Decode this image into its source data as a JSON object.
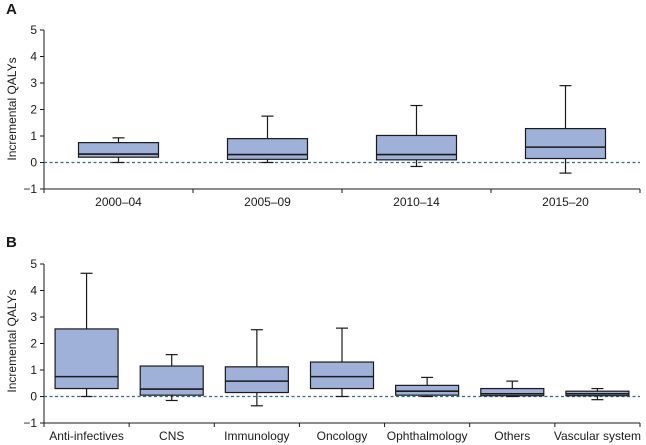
{
  "colors": {
    "box_fill": "#9fb0d9",
    "box_stroke": "#1a1a1a",
    "zero_line": "#2f6b8f",
    "axis": "#1a1a1a"
  },
  "chart_data": [
    {
      "panel": "A",
      "type": "box",
      "ylabel": "Incremental QALYs",
      "ylim": [
        -1,
        5
      ],
      "yticks": [
        -1,
        0,
        1,
        2,
        3,
        4,
        5
      ],
      "reference_line": 0,
      "categories": [
        "2000–04",
        "2005–09",
        "2010–14",
        "2015–20"
      ],
      "boxes": [
        {
          "min": 0.0,
          "q1": 0.2,
          "median": 0.32,
          "q3": 0.75,
          "max": 0.93
        },
        {
          "min": 0.0,
          "q1": 0.12,
          "median": 0.3,
          "q3": 0.9,
          "max": 1.75
        },
        {
          "min": -0.15,
          "q1": 0.1,
          "median": 0.3,
          "q3": 1.02,
          "max": 2.15
        },
        {
          "min": -0.4,
          "q1": 0.15,
          "median": 0.58,
          "q3": 1.28,
          "max": 2.9
        }
      ]
    },
    {
      "panel": "B",
      "type": "box",
      "ylabel": "Incremental QALYs",
      "ylim": [
        -1,
        5
      ],
      "yticks": [
        -1,
        0,
        1,
        2,
        3,
        4,
        5
      ],
      "reference_line": 0,
      "categories": [
        "Anti-infectives",
        "CNS",
        "Immunology",
        "Oncology",
        "Ophthalmology",
        "Others",
        "Vascular system"
      ],
      "boxes": [
        {
          "min": 0.0,
          "q1": 0.3,
          "median": 0.75,
          "q3": 2.55,
          "max": 4.65
        },
        {
          "min": -0.15,
          "q1": 0.05,
          "median": 0.28,
          "q3": 1.15,
          "max": 1.58
        },
        {
          "min": -0.35,
          "q1": 0.15,
          "median": 0.58,
          "q3": 1.12,
          "max": 2.52
        },
        {
          "min": 0.0,
          "q1": 0.3,
          "median": 0.75,
          "q3": 1.3,
          "max": 2.58
        },
        {
          "min": 0.0,
          "q1": 0.05,
          "median": 0.2,
          "q3": 0.42,
          "max": 0.72
        },
        {
          "min": 0.0,
          "q1": 0.03,
          "median": 0.1,
          "q3": 0.3,
          "max": 0.58
        },
        {
          "min": -0.12,
          "q1": 0.03,
          "median": 0.1,
          "q3": 0.2,
          "max": 0.3
        }
      ]
    }
  ]
}
